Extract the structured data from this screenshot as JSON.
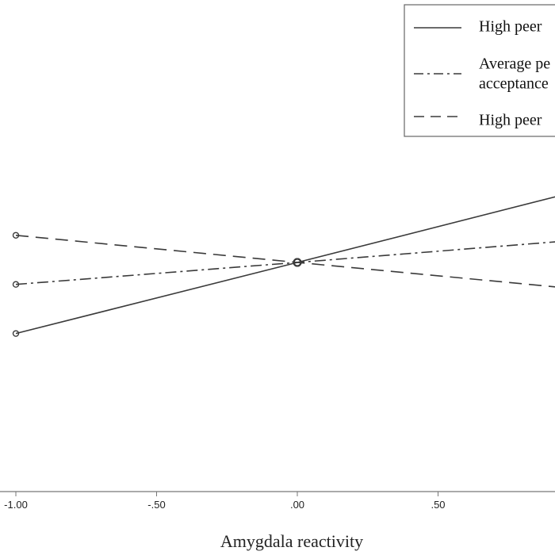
{
  "chart_data": {
    "type": "line",
    "title": "",
    "xlabel": "Amygdala reactivity",
    "ylabel": "",
    "xlim": [
      -1.04,
      0.92
    ],
    "ylim": [
      -1.0,
      1.0
    ],
    "x_ticks": [
      -1.0,
      -0.5,
      0.0,
      0.5
    ],
    "x_tick_labels": [
      "-1.00",
      "-.50",
      ".00",
      ".50"
    ],
    "grid": false,
    "legend": {
      "placement": "top-right",
      "entries": [
        {
          "label_lines": [
            "High peer"
          ],
          "style": "solid"
        },
        {
          "label_lines": [
            "Average pe",
            "acceptance"
          ],
          "style": "dashdot"
        },
        {
          "label_lines": [
            "High peer"
          ],
          "style": "dashed"
        }
      ]
    },
    "series": [
      {
        "style": "solid",
        "x": [
          -1.0,
          0.0,
          0.92
        ],
        "y": [
          -0.55,
          0.0,
          0.51
        ],
        "markers": [
          -1.0,
          0.0
        ]
      },
      {
        "style": "dashdot",
        "x": [
          -1.0,
          0.0,
          0.92
        ],
        "y": [
          -0.17,
          0.0,
          0.16
        ],
        "markers": [
          -1.0,
          0.0
        ]
      },
      {
        "style": "dashed",
        "x": [
          -1.0,
          0.0,
          0.92
        ],
        "y": [
          0.21,
          0.0,
          -0.19
        ],
        "markers": [
          -1.0,
          0.0
        ]
      }
    ],
    "colors": {
      "line": "#3a3a3a",
      "axis": "#777777",
      "text": "#222222"
    }
  }
}
